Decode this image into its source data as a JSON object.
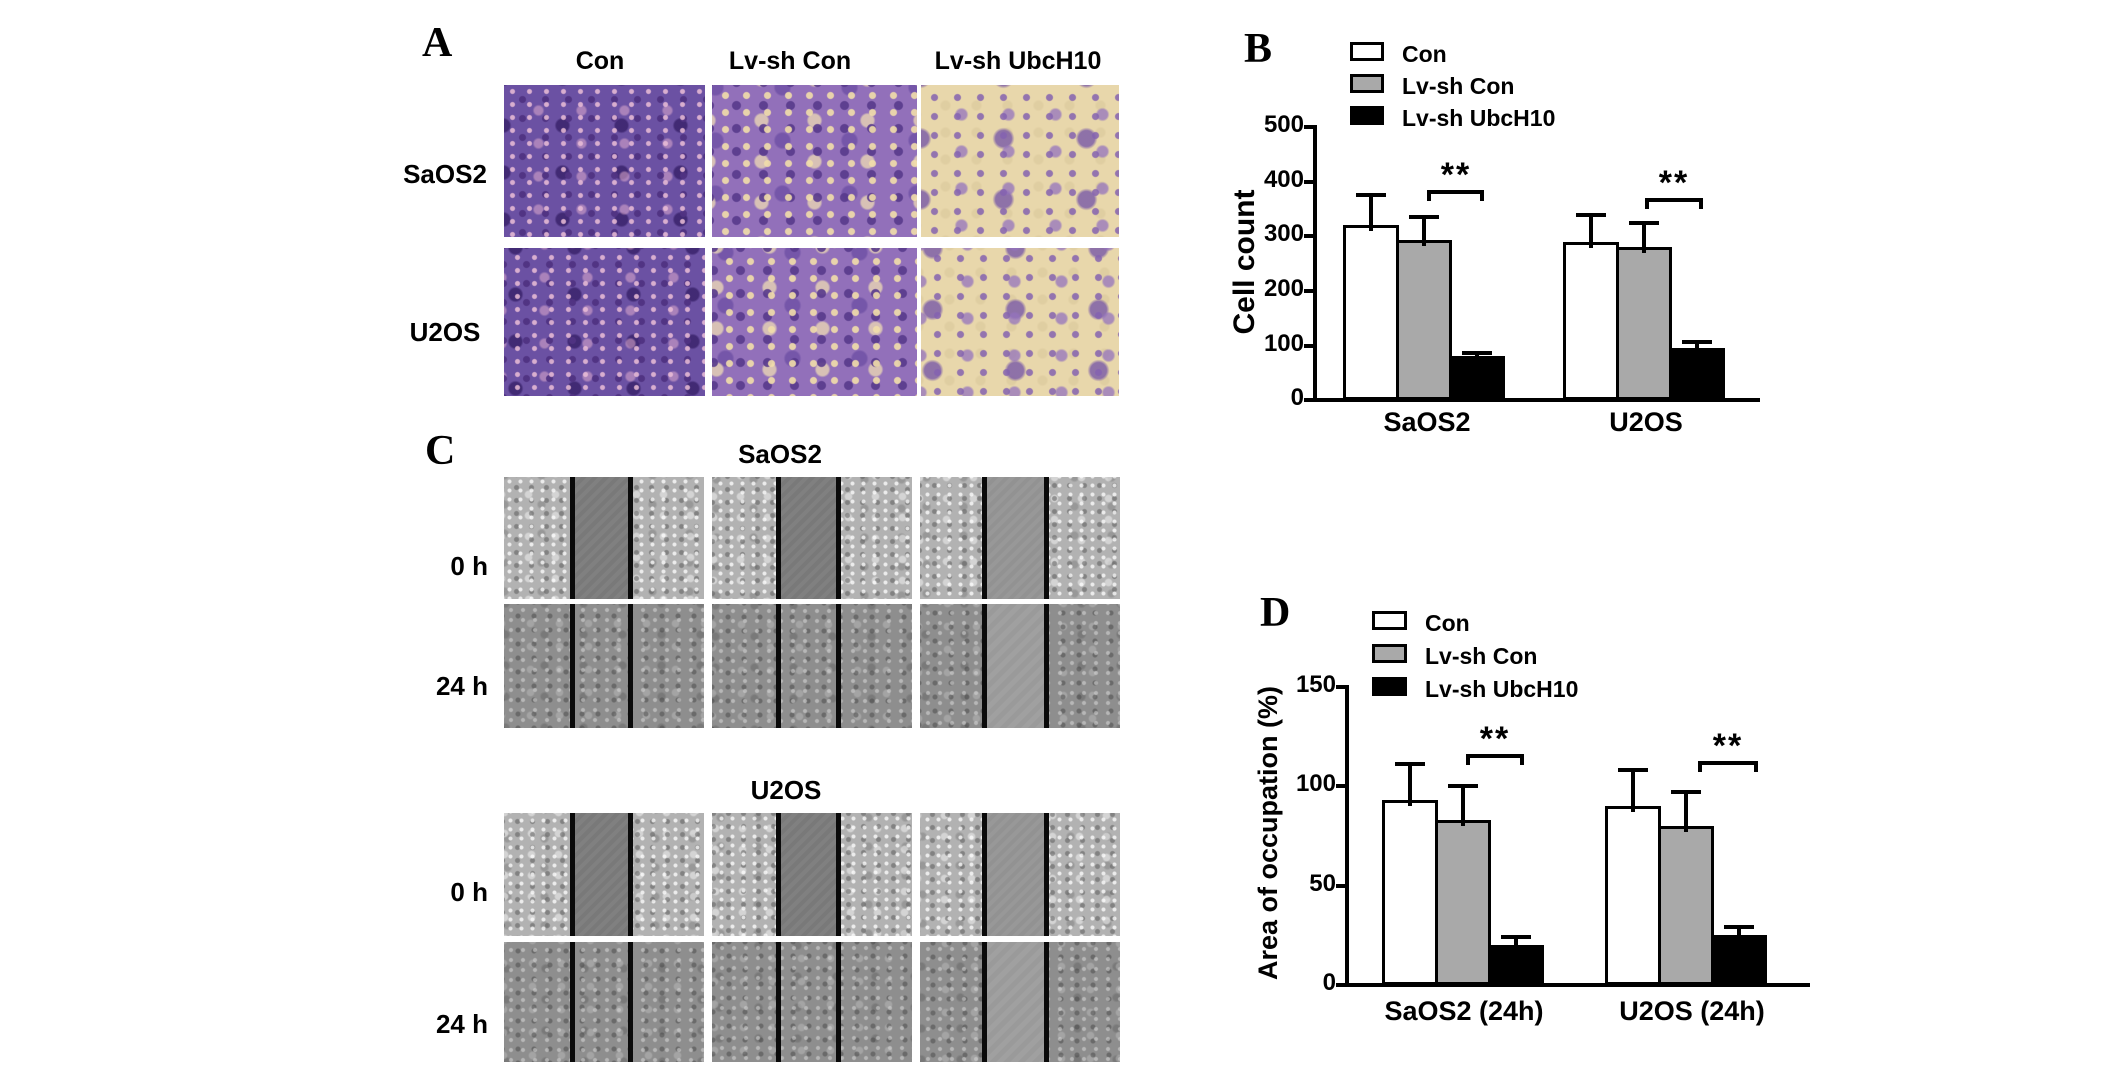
{
  "panels": {
    "a": {
      "label": "A",
      "col_headers": [
        "Con",
        "Lv-sh Con",
        "Lv-sh UbcH10"
      ],
      "row_labels": [
        "SaOS2",
        "U2OS"
      ]
    },
    "b": {
      "label": "B"
    },
    "c": {
      "label": "C",
      "section_titles": [
        "SaOS2",
        "U2OS"
      ],
      "row_labels": [
        "0 h",
        "24 h"
      ]
    },
    "d": {
      "label": "D"
    }
  },
  "chart_data": [
    {
      "id": "B",
      "type": "bar",
      "ylabel": "Cell count",
      "categories": [
        "SaOS2",
        "U2OS"
      ],
      "series": [
        {
          "name": "Con",
          "color": "#ffffff",
          "values": [
            320,
            290
          ],
          "error_plus": [
            70,
            65
          ]
        },
        {
          "name": "Lv-sh Con",
          "color": "#a9a9a9",
          "values": [
            293,
            280
          ],
          "error_plus": [
            57,
            58
          ]
        },
        {
          "name": "Lv-sh UbcH10",
          "color": "#000000",
          "values": [
            80,
            95
          ],
          "error_plus": [
            20,
            25
          ]
        }
      ],
      "yticks": [
        0,
        100,
        200,
        300,
        400,
        500
      ],
      "ylim": [
        0,
        500
      ],
      "grid": false,
      "legend_position": "top-left",
      "significance": [
        {
          "category": "SaOS2",
          "between": [
            "Lv-sh Con",
            "Lv-sh UbcH10"
          ],
          "label": "**"
        },
        {
          "category": "U2OS",
          "between": [
            "Lv-sh Con",
            "Lv-sh UbcH10"
          ],
          "label": "**"
        }
      ]
    },
    {
      "id": "D",
      "type": "bar",
      "ylabel": "Area of occupation (%)",
      "categories": [
        "SaOS2 (24h)",
        "U2OS (24h)"
      ],
      "series": [
        {
          "name": "Con",
          "color": "#ffffff",
          "values": [
            93,
            90
          ],
          "error_plus": [
            22,
            22
          ]
        },
        {
          "name": "Lv-sh Con",
          "color": "#a9a9a9",
          "values": [
            83,
            80
          ],
          "error_plus": [
            21,
            21
          ]
        },
        {
          "name": "Lv-sh UbcH10",
          "color": "#000000",
          "values": [
            20,
            25
          ],
          "error_plus": [
            8,
            8
          ]
        }
      ],
      "yticks": [
        0,
        50,
        100,
        150
      ],
      "ylim": [
        0,
        150
      ],
      "grid": false,
      "legend_position": "top-left",
      "significance": [
        {
          "category": "SaOS2 (24h)",
          "between": [
            "Lv-sh Con",
            "Lv-sh UbcH10"
          ],
          "label": "**"
        },
        {
          "category": "U2OS (24h)",
          "between": [
            "Lv-sh Con",
            "Lv-sh UbcH10"
          ],
          "label": "**"
        }
      ]
    }
  ]
}
